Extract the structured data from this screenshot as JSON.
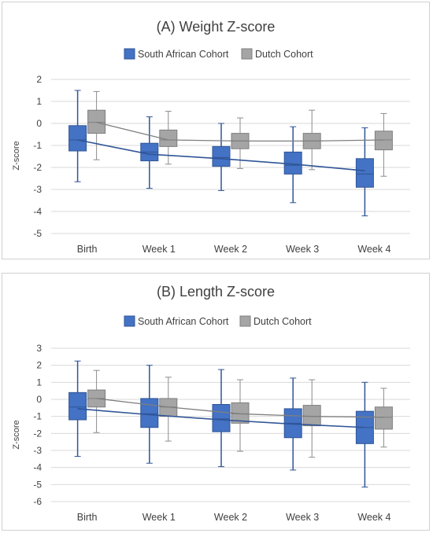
{
  "chart_data": [
    {
      "type": "box",
      "title": "(A) Weight Z-score",
      "ylabel": "Z-score",
      "xlabel": "",
      "ylim": [
        -5,
        2
      ],
      "yticks": [
        -5,
        -4,
        -3,
        -2,
        -1,
        0,
        1,
        2
      ],
      "legend_position": "top",
      "categories": [
        "Birth",
        "Week 1",
        "Week 2",
        "Week 3",
        "Week 4"
      ],
      "series": [
        {
          "name": "South African Cohort",
          "color": "#4472C4",
          "boxes": [
            {
              "min": -2.65,
              "q1": -1.25,
              "median": -0.75,
              "q3": -0.1,
              "max": 1.5
            },
            {
              "min": -2.95,
              "q1": -1.7,
              "median": -1.3,
              "q3": -0.9,
              "max": 0.3
            },
            {
              "min": -3.05,
              "q1": -1.95,
              "median": -1.55,
              "q3": -1.05,
              "max": 0.0
            },
            {
              "min": -3.6,
              "q1": -2.3,
              "median": -1.9,
              "q3": -1.3,
              "max": -0.15
            },
            {
              "min": -4.2,
              "q1": -2.9,
              "median": -2.3,
              "q3": -1.6,
              "max": -0.2
            }
          ],
          "mean_line": [
            -0.75,
            -1.4,
            -1.6,
            -1.85,
            -2.15
          ]
        },
        {
          "name": "Dutch Cohort",
          "color": "#A5A5A5",
          "boxes": [
            {
              "min": -1.65,
              "q1": -0.45,
              "median": 0.05,
              "q3": 0.6,
              "max": 1.45
            },
            {
              "min": -1.85,
              "q1": -1.05,
              "median": -0.75,
              "q3": -0.3,
              "max": 0.55
            },
            {
              "min": -2.05,
              "q1": -1.15,
              "median": -0.8,
              "q3": -0.45,
              "max": 0.25
            },
            {
              "min": -2.1,
              "q1": -1.15,
              "median": -0.8,
              "q3": -0.45,
              "max": 0.6
            },
            {
              "min": -2.4,
              "q1": -1.2,
              "median": -0.75,
              "q3": -0.35,
              "max": 0.45
            }
          ],
          "mean_line": [
            0.05,
            -0.75,
            -0.8,
            -0.8,
            -0.75
          ]
        }
      ]
    },
    {
      "type": "box",
      "title": "(B) Length Z-score",
      "ylabel": "Z-score",
      "xlabel": "",
      "ylim": [
        -6,
        3
      ],
      "yticks": [
        -6,
        -5,
        -4,
        -3,
        -2,
        -1,
        0,
        1,
        2,
        3
      ],
      "legend_position": "top",
      "categories": [
        "Birth",
        "Week 1",
        "Week 2",
        "Week 3",
        "Week 4"
      ],
      "series": [
        {
          "name": "South African Cohort",
          "color": "#4472C4",
          "boxes": [
            {
              "min": -3.35,
              "q1": -1.2,
              "median": -0.45,
              "q3": 0.4,
              "max": 2.25
            },
            {
              "min": -3.75,
              "q1": -1.65,
              "median": -0.85,
              "q3": 0.05,
              "max": 2.0
            },
            {
              "min": -3.95,
              "q1": -1.9,
              "median": -1.15,
              "q3": -0.3,
              "max": 1.75
            },
            {
              "min": -4.15,
              "q1": -2.25,
              "median": -1.4,
              "q3": -0.55,
              "max": 1.25
            },
            {
              "min": -5.15,
              "q1": -2.6,
              "median": -1.65,
              "q3": -0.7,
              "max": 1.0
            }
          ],
          "mean_line": [
            -0.55,
            -0.9,
            -1.2,
            -1.45,
            -1.65
          ]
        },
        {
          "name": "Dutch Cohort",
          "color": "#A5A5A5",
          "boxes": [
            {
              "min": -1.95,
              "q1": -0.45,
              "median": 0.05,
              "q3": 0.55,
              "max": 1.7
            },
            {
              "min": -2.45,
              "q1": -1.0,
              "median": -0.45,
              "q3": 0.05,
              "max": 1.3
            },
            {
              "min": -3.05,
              "q1": -1.4,
              "median": -0.85,
              "q3": -0.2,
              "max": 1.15
            },
            {
              "min": -3.4,
              "q1": -1.55,
              "median": -1.0,
              "q3": -0.35,
              "max": 1.15
            },
            {
              "min": -2.8,
              "q1": -1.75,
              "median": -1.05,
              "q3": -0.45,
              "max": 0.65
            }
          ],
          "mean_line": [
            0.05,
            -0.45,
            -0.85,
            -1.0,
            -1.05
          ]
        }
      ]
    }
  ]
}
